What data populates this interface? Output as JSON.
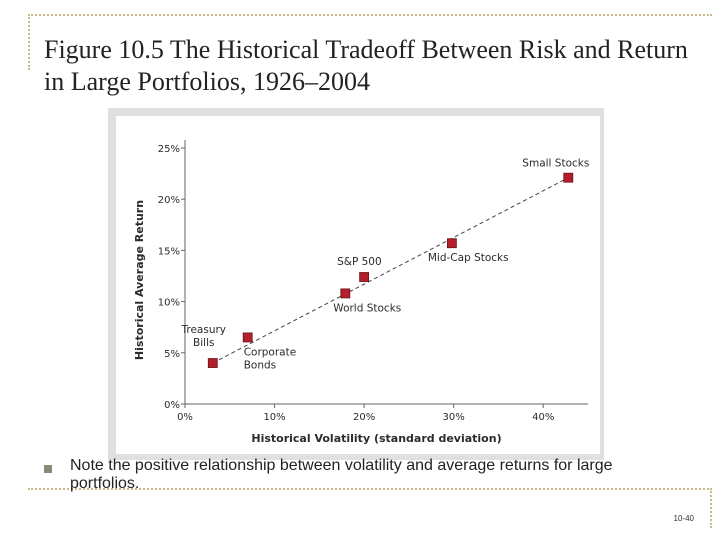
{
  "slide": {
    "title": "Figure 10.5  The Historical Tradeoff Between Risk and Return in Large Portfolios, 1926–2004",
    "note": "Note the positive relationship between volatility and average returns for large portfolios.",
    "slide_number": "10-40"
  },
  "chart_data": {
    "type": "scatter",
    "title": "",
    "xlabel": "Historical Volatility (standard deviation)",
    "ylabel": "Historical Average Return",
    "xlim": [
      0,
      45
    ],
    "ylim": [
      0,
      25
    ],
    "xticks": [
      "0%",
      "10%",
      "20%",
      "30%",
      "40%"
    ],
    "yticks": [
      "0%",
      "5%",
      "10%",
      "15%",
      "20%",
      "25%"
    ],
    "trendline": "dashed",
    "marker_color": "#b3202c",
    "points": [
      {
        "label": "Treasury Bills",
        "x": 3.1,
        "y": 4.0
      },
      {
        "label": "Corporate Bonds",
        "x": 7.0,
        "y": 6.5
      },
      {
        "label": "World Stocks",
        "x": 17.9,
        "y": 10.8
      },
      {
        "label": "S&P 500",
        "x": 20.0,
        "y": 12.4
      },
      {
        "label": "Mid-Cap Stocks",
        "x": 29.8,
        "y": 15.7
      },
      {
        "label": "Small Stocks",
        "x": 42.8,
        "y": 22.1
      }
    ]
  }
}
